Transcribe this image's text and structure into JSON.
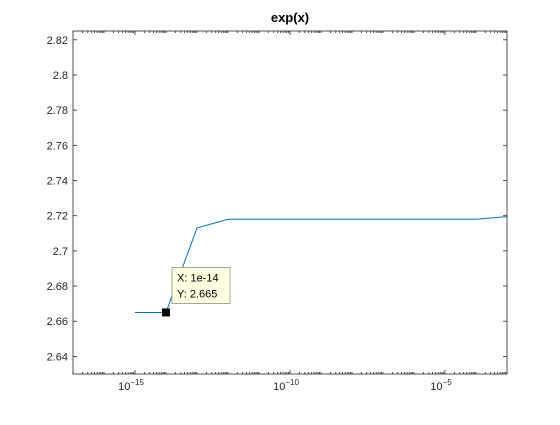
{
  "chart_data": {
    "type": "line",
    "title": "exp(x)",
    "xscale": "log",
    "xlim": [
      1e-17,
      0.001
    ],
    "ylim": [
      2.63,
      2.825
    ],
    "yticks": [
      2.64,
      2.66,
      2.68,
      2.7,
      2.72,
      2.74,
      2.76,
      2.78,
      2.8,
      2.82
    ],
    "ytick_labels": [
      "2.64",
      "2.66",
      "2.68",
      "2.7",
      "2.72",
      "2.74",
      "2.76",
      "2.78",
      "2.8",
      "2.82"
    ],
    "xticks": [
      1e-15,
      1e-10,
      1e-05
    ],
    "xtick_labels": [
      {
        "base": "10",
        "exp": "−15"
      },
      {
        "base": "10",
        "exp": "−10"
      },
      {
        "base": "10",
        "exp": "−5"
      }
    ],
    "grid": false,
    "series": [
      {
        "color": "#0072BD",
        "x": [
          1e-15,
          1e-14,
          1e-14,
          1e-13,
          1e-12,
          1e-11,
          1e-10,
          1e-09,
          1e-08,
          1e-07,
          1e-06,
          1e-05,
          0.0001,
          0.001
        ],
        "y": [
          2.665,
          2.665,
          2.665,
          2.713,
          2.718,
          2.718,
          2.718,
          2.718,
          2.718,
          2.718,
          2.718,
          2.718,
          2.718,
          2.7195
        ]
      }
    ],
    "datatip": {
      "x_text": "X: 1e-14",
      "y_text": "Y: 2.665",
      "x": 1e-14,
      "y": 2.665
    }
  }
}
